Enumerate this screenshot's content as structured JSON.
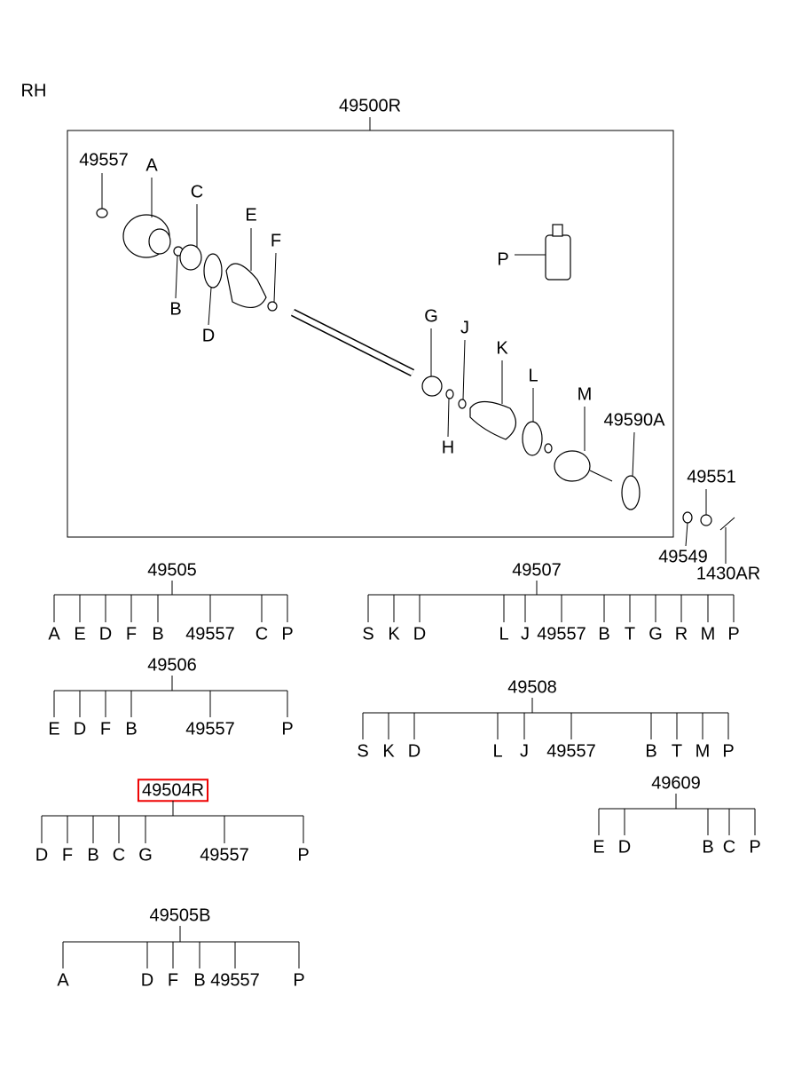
{
  "side": "RH",
  "assembly": {
    "label": "49500R",
    "callouts": [
      "49557",
      "A",
      "C",
      "E",
      "F",
      "B",
      "D",
      "G",
      "J",
      "K",
      "L",
      "M",
      "H",
      "49590A",
      "P"
    ]
  },
  "extra_parts": [
    "49551",
    "49549",
    "1430AR"
  ],
  "trees": [
    {
      "root": "49505",
      "leaves": [
        "A",
        "E",
        "D",
        "F",
        "B",
        "49557",
        "C",
        "P"
      ]
    },
    {
      "root": "49507",
      "leaves": [
        "S",
        "K",
        "D",
        "L",
        "J",
        "49557",
        "B",
        "T",
        "G",
        "R",
        "M",
        "P"
      ]
    },
    {
      "root": "49506",
      "leaves": [
        "E",
        "D",
        "F",
        "B",
        "49557",
        "P"
      ]
    },
    {
      "root": "49508",
      "leaves": [
        "S",
        "K",
        "D",
        "L",
        "J",
        "49557",
        "B",
        "T",
        "M",
        "P"
      ]
    },
    {
      "root": "49609",
      "leaves": [
        "E",
        "D",
        "B",
        "C",
        "P"
      ]
    },
    {
      "root": "49504R",
      "leaves": [
        "D",
        "F",
        "B",
        "C",
        "G",
        "49557",
        "P"
      ],
      "selected": true
    },
    {
      "root": "49505B",
      "leaves": [
        "A",
        "D",
        "F",
        "B",
        "49557",
        "P"
      ]
    }
  ]
}
